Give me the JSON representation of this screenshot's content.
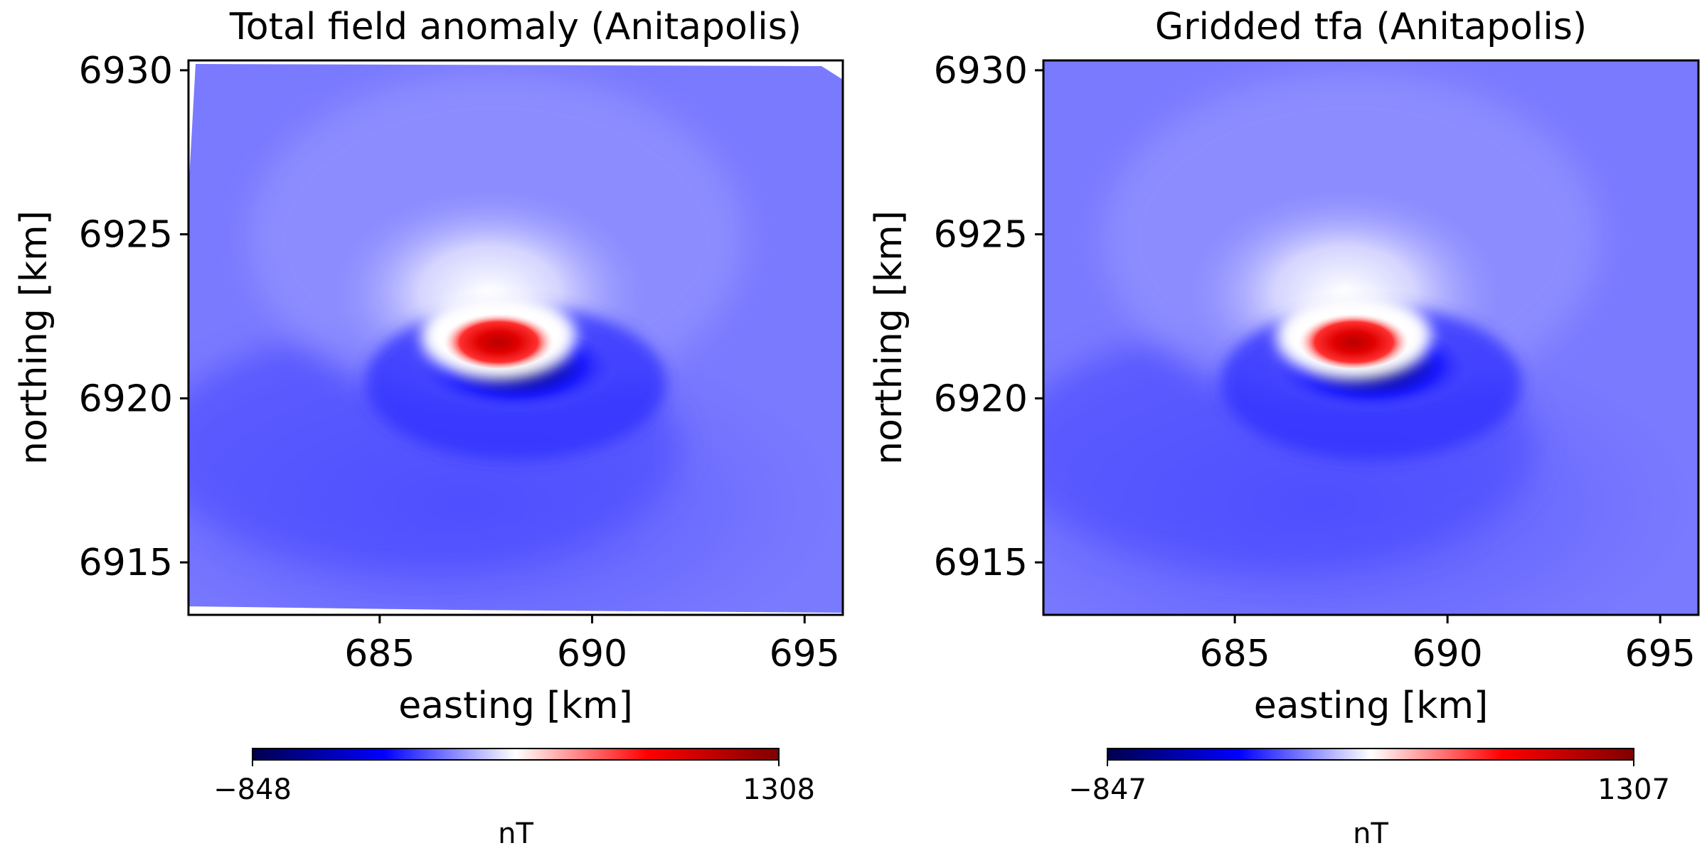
{
  "chart_data": [
    {
      "type": "heatmap",
      "title": "Total field anomaly (Anitapolis)",
      "xlabel": "easting [km]",
      "ylabel": "northing [km]",
      "xlim": [
        680.5,
        695.9
      ],
      "ylim": [
        6913.4,
        6930.3
      ],
      "xticks": [
        685,
        690,
        695
      ],
      "yticks": [
        6915,
        6920,
        6925,
        6930
      ],
      "colorbar": {
        "min": -848,
        "max": 1308,
        "label": "nT",
        "cmap": "seismic"
      },
      "anomaly": {
        "positive_peak": [
          687.8,
          6921.8
        ],
        "negative_peak": [
          688.2,
          6920.7
        ]
      },
      "has_data_gaps": true
    },
    {
      "type": "heatmap",
      "title": "Gridded tfa (Anitapolis)",
      "xlabel": "easting [km]",
      "ylabel": "northing [km]",
      "xlim": [
        680.5,
        695.9
      ],
      "ylim": [
        6913.4,
        6930.3
      ],
      "xticks": [
        685,
        690,
        695
      ],
      "yticks": [
        6915,
        6920,
        6925,
        6930
      ],
      "colorbar": {
        "min": -847,
        "max": 1307,
        "label": "nT",
        "cmap": "seismic"
      },
      "anomaly": {
        "positive_peak": [
          687.8,
          6921.8
        ],
        "negative_peak": [
          688.2,
          6920.7
        ]
      },
      "has_data_gaps": false
    }
  ]
}
